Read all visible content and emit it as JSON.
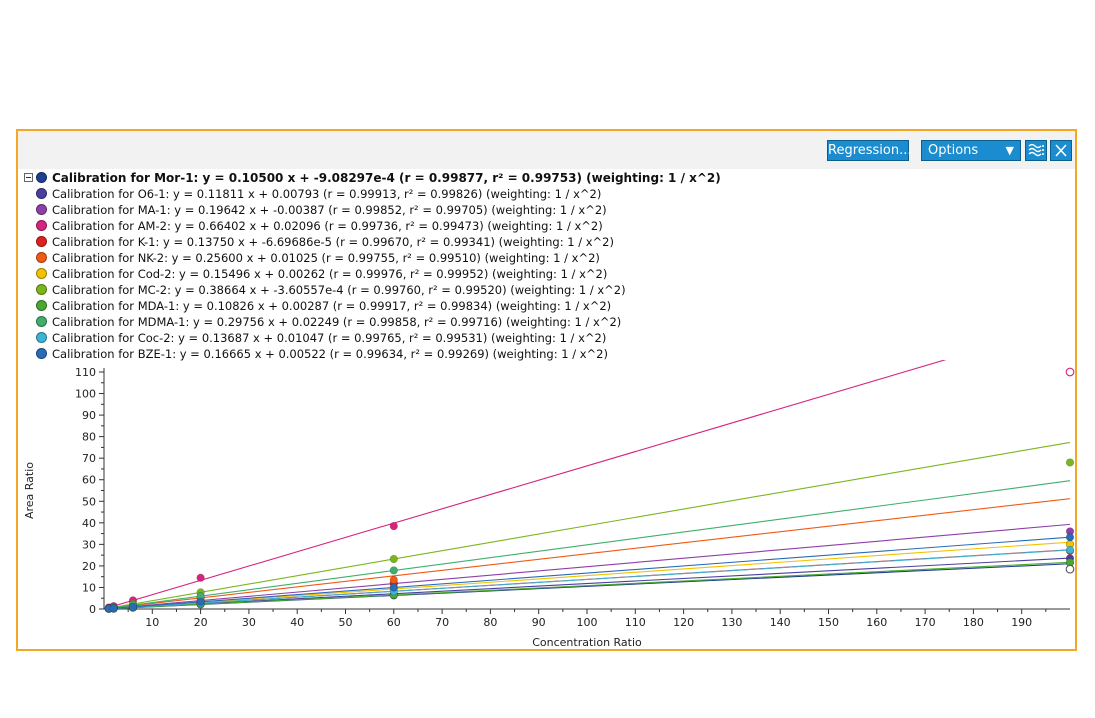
{
  "toolbar": {
    "regression_label": "Regression...",
    "options_label": "Options",
    "legend_icon": "legend-toggle-icon",
    "close_icon": "close-icon"
  },
  "legend": [
    {
      "text": "Calibration for Mor-1: y = 0.10500 x + -9.08297e-4 (r = 0.99877, r² = 0.99753)  (weighting: 1 / x^2)",
      "color": "#1f3f8f",
      "bold": true
    },
    {
      "text": "Calibration for O6-1: y = 0.11811 x + 0.00793 (r = 0.99913, r² = 0.99826)  (weighting: 1 / x^2)",
      "color": "#4b3f9e"
    },
    {
      "text": "Calibration for MA-1: y = 0.19642 x + -0.00387 (r = 0.99852, r² = 0.99705)  (weighting: 1 / x^2)",
      "color": "#8e3fa8"
    },
    {
      "text": "Calibration for AM-2: y = 0.66402 x + 0.02096 (r = 0.99736, r² = 0.99473)  (weighting: 1 / x^2)",
      "color": "#d6247f"
    },
    {
      "text": "Calibration for K-1: y = 0.13750 x + -6.69686e-5 (r = 0.99670, r² = 0.99341)  (weighting: 1 / x^2)",
      "color": "#e02020"
    },
    {
      "text": "Calibration for NK-2: y = 0.25600 x + 0.01025 (r = 0.99755, r² = 0.99510)  (weighting: 1 / x^2)",
      "color": "#f05a14"
    },
    {
      "text": "Calibration for Cod-2: y = 0.15496 x + 0.00262 (r = 0.99976, r² = 0.99952)  (weighting: 1 / x^2)",
      "color": "#f2c200"
    },
    {
      "text": "Calibration for MC-2: y = 0.38664 x + -3.60557e-4 (r = 0.99760, r² = 0.99520)  (weighting: 1 / x^2)",
      "color": "#7ab51d"
    },
    {
      "text": "Calibration for MDA-1: y = 0.10826 x + 0.00287 (r = 0.99917, r² = 0.99834)  (weighting: 1 / x^2)",
      "color": "#4aa832"
    },
    {
      "text": "Calibration for MDMA-1: y = 0.29756 x + 0.02249 (r = 0.99858, r² = 0.99716)  (weighting: 1 / x^2)",
      "color": "#3fae6a"
    },
    {
      "text": "Calibration for Coc-2: y = 0.13687 x + 0.01047 (r = 0.99765, r² = 0.99531)  (weighting: 1 / x^2)",
      "color": "#3db3d6"
    },
    {
      "text": "Calibration for BZE-1: y = 0.16665 x + 0.00522 (r = 0.99634, r² = 0.99269)  (weighting: 1 / x^2)",
      "color": "#2a6bb8"
    }
  ],
  "chart_data": {
    "type": "scatter",
    "xlabel": "Concentration Ratio",
    "ylabel": "Area Ratio",
    "xlim": [
      0,
      200
    ],
    "ylim": [
      0,
      110
    ],
    "xticks": [
      10,
      20,
      30,
      40,
      50,
      60,
      70,
      80,
      90,
      100,
      110,
      120,
      130,
      140,
      150,
      160,
      170,
      180,
      190
    ],
    "yticks": [
      0,
      10,
      20,
      30,
      40,
      50,
      60,
      70,
      80,
      90,
      100,
      110
    ],
    "x_points": [
      1,
      2,
      6,
      20,
      60,
      200
    ],
    "series": [
      {
        "name": "Mor-1",
        "color": "#1f3f8f",
        "slope": 0.105,
        "intercept": -0.000908297,
        "points": [
          [
            1,
            0.1
          ],
          [
            2,
            0.2
          ],
          [
            6,
            0.6
          ],
          [
            20,
            2.1
          ],
          [
            60,
            6.3
          ],
          [
            200,
            21.5
          ]
        ]
      },
      {
        "name": "O6-1",
        "color": "#4b3f9e",
        "slope": 0.11811,
        "intercept": 0.00793,
        "points": [
          [
            1,
            0.1
          ],
          [
            2,
            0.2
          ],
          [
            6,
            0.7
          ],
          [
            20,
            2.4
          ],
          [
            60,
            7.1
          ],
          [
            200,
            23.5
          ]
        ]
      },
      {
        "name": "MA-1",
        "color": "#8e3fa8",
        "slope": 0.19642,
        "intercept": -0.00387,
        "points": [
          [
            1,
            0.2
          ],
          [
            2,
            0.4
          ],
          [
            6,
            1.2
          ],
          [
            20,
            3.9
          ],
          [
            60,
            11.8
          ],
          [
            200,
            36
          ]
        ]
      },
      {
        "name": "AM-2",
        "color": "#d6247f",
        "slope": 0.66402,
        "intercept": 0.02096,
        "points": [
          [
            1,
            0.7
          ],
          [
            2,
            1.3
          ],
          [
            6,
            4
          ],
          [
            20,
            14.5
          ],
          [
            60,
            38.5
          ]
        ],
        "outliers": [
          [
            200,
            110
          ]
        ]
      },
      {
        "name": "K-1",
        "color": "#e02020",
        "slope": 0.1375,
        "intercept": -6.69686e-05,
        "points": [
          [
            1,
            0.1
          ],
          [
            2,
            0.3
          ],
          [
            6,
            0.8
          ],
          [
            20,
            2.8
          ],
          [
            60,
            12
          ],
          [
            200,
            27
          ]
        ]
      },
      {
        "name": "NK-2",
        "color": "#f05a14",
        "slope": 0.256,
        "intercept": 0.01025,
        "points": [
          [
            1,
            0.3
          ],
          [
            2,
            0.5
          ],
          [
            6,
            1.5
          ],
          [
            20,
            5.1
          ],
          [
            60,
            13.5
          ],
          [
            200,
            30
          ]
        ]
      },
      {
        "name": "Cod-2",
        "color": "#f2c200",
        "slope": 0.15496,
        "intercept": 0.00262,
        "points": [
          [
            1,
            0.2
          ],
          [
            2,
            0.3
          ],
          [
            6,
            0.9
          ],
          [
            20,
            3.1
          ],
          [
            60,
            9.3
          ],
          [
            200,
            30
          ]
        ]
      },
      {
        "name": "MC-2",
        "color": "#7ab51d",
        "slope": 0.38664,
        "intercept": -0.000360557,
        "points": [
          [
            1,
            0.4
          ],
          [
            2,
            0.8
          ],
          [
            6,
            2.3
          ],
          [
            20,
            7.7
          ],
          [
            60,
            23.2
          ],
          [
            200,
            68
          ]
        ]
      },
      {
        "name": "MDA-1",
        "color": "#4aa832",
        "slope": 0.10826,
        "intercept": 0.00287,
        "points": [
          [
            1,
            0.1
          ],
          [
            2,
            0.2
          ],
          [
            6,
            0.6
          ],
          [
            20,
            2.2
          ],
          [
            60,
            6.5
          ],
          [
            200,
            21.6
          ]
        ]
      },
      {
        "name": "MDMA-1",
        "color": "#3fae6a",
        "slope": 0.29756,
        "intercept": 0.02249,
        "points": [
          [
            1,
            0.3
          ],
          [
            2,
            0.6
          ],
          [
            6,
            1.8
          ],
          [
            20,
            6
          ],
          [
            60,
            17.9
          ]
        ],
        "outliers": [
          [
            200,
            18.5
          ]
        ]
      },
      {
        "name": "Coc-2",
        "color": "#3db3d6",
        "slope": 0.13687,
        "intercept": 0.01047,
        "points": [
          [
            1,
            0.1
          ],
          [
            2,
            0.3
          ],
          [
            6,
            0.8
          ],
          [
            20,
            2.7
          ],
          [
            60,
            8.2
          ],
          [
            200,
            27.4
          ]
        ]
      },
      {
        "name": "BZE-1",
        "color": "#2a6bb8",
        "slope": 0.16665,
        "intercept": 0.00522,
        "points": [
          [
            1,
            0.2
          ],
          [
            2,
            0.3
          ],
          [
            6,
            1
          ],
          [
            20,
            3.3
          ],
          [
            60,
            10
          ],
          [
            200,
            33.3
          ]
        ]
      }
    ]
  }
}
